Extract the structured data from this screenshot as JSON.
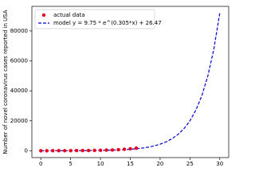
{
  "chart_data": {
    "type": "scatter",
    "ylabel": "Number of novel coronavirus cases reported in USA",
    "xlim": [
      -1.5,
      31.5
    ],
    "xticks": [
      0,
      5,
      10,
      15,
      20,
      25,
      30
    ],
    "ylim": [
      -4560,
      96400
    ],
    "yticks": [
      0,
      20000,
      40000,
      60000,
      80000
    ],
    "legend": "upper left",
    "series": [
      {
        "name": "actual data",
        "type": "scatter",
        "color": "#e8001c",
        "x": [
          0,
          1,
          2,
          3,
          4,
          5,
          6,
          7,
          8,
          9,
          10,
          11,
          12,
          13,
          14,
          15,
          16
        ],
        "values": [
          15,
          15,
          51,
          56,
          68,
          80,
          100,
          124,
          158,
          221,
          319,
          435,
          541,
          704,
          994,
          1301,
          1697
        ]
      },
      {
        "name": "model y = 9.75 * e^(0.305*x) + 26.47",
        "type": "line",
        "color": "#0000cc",
        "dash": "dashed",
        "x": [
          0,
          1,
          2,
          3,
          4,
          5,
          6,
          7,
          8,
          9,
          10,
          11,
          12,
          13,
          14,
          15,
          16,
          17,
          18,
          19,
          20,
          21,
          22,
          23,
          24,
          25,
          26,
          27,
          28,
          29,
          30
        ],
        "values": [
          36.22,
          39.7,
          44.41,
          50.81,
          59.5,
          71.27,
          87.25,
          108.93,
          138.33,
          178.23,
          232.34,
          305.77,
          405.36,
          540.5,
          723.8,
          972.4,
          1309.8,
          1767,
          2389,
          3231,
          4374,
          5924,
          8027,
          10881,
          14752,
          20003,
          27127,
          36792,
          49903,
          67690,
          91820
        ]
      }
    ]
  }
}
